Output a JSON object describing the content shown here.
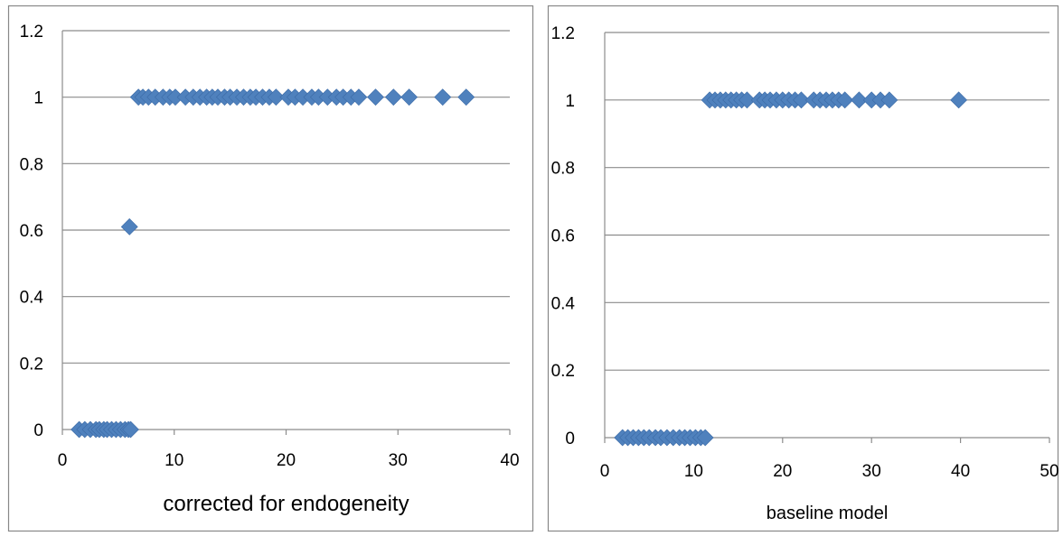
{
  "chart_data": [
    {
      "type": "scatter",
      "title": "",
      "xlabel": "corrected for endogeneity",
      "ylabel": "",
      "xlim": [
        0,
        40
      ],
      "ylim": [
        0,
        1.2
      ],
      "xticks": [
        "0",
        "10",
        "20",
        "30",
        "40"
      ],
      "yticks": [
        "0",
        "0.2",
        "0.4",
        "0.6",
        "0.8",
        "1",
        "1.2"
      ],
      "grid": "horizontal",
      "marker": "diamond",
      "color": "#4F81BD",
      "series": [
        {
          "x": [
            1.5,
            2.0,
            2.5,
            3.0,
            3.3,
            3.7,
            4.0,
            4.4,
            4.8,
            5.2,
            5.6,
            5.9,
            6.1,
            6.0,
            6.8,
            7.2,
            7.7,
            8.3,
            9.0,
            9.6,
            10.1,
            11.0,
            11.7,
            12.3,
            12.9,
            13.4,
            13.9,
            14.5,
            15.0,
            15.6,
            16.2,
            16.8,
            17.3,
            17.9,
            18.5,
            19.1,
            20.2,
            20.8,
            21.5,
            22.3,
            22.9,
            23.7,
            24.5,
            25.1,
            25.8,
            26.5,
            28.0,
            29.6,
            31.0,
            34.0,
            36.1
          ],
          "y": [
            0,
            0,
            0,
            0,
            0,
            0,
            0,
            0,
            0,
            0,
            0,
            0,
            0,
            0.61,
            1,
            1,
            1,
            1,
            1,
            1,
            1,
            1,
            1,
            1,
            1,
            1,
            1,
            1,
            1,
            1,
            1,
            1,
            1,
            1,
            1,
            1,
            1,
            1,
            1,
            1,
            1,
            1,
            1,
            1,
            1,
            1,
            1,
            1,
            1,
            1,
            1
          ]
        }
      ]
    },
    {
      "type": "scatter",
      "title": "",
      "xlabel": "baseline model",
      "ylabel": "",
      "xlim": [
        0,
        50
      ],
      "ylim": [
        0,
        1.2
      ],
      "xticks": [
        "0",
        "10",
        "20",
        "30",
        "40",
        "50"
      ],
      "yticks": [
        "0",
        "0.2",
        "0.4",
        "0.6",
        "0.8",
        "1",
        "1.2"
      ],
      "grid": "horizontal",
      "marker": "diamond",
      "color": "#4F81BD",
      "series": [
        {
          "x": [
            2.0,
            2.6,
            3.2,
            3.8,
            4.4,
            5.0,
            5.7,
            6.3,
            7.0,
            7.7,
            8.4,
            9.0,
            9.6,
            10.2,
            10.8,
            11.3,
            11.8,
            12.4,
            13.0,
            13.6,
            14.2,
            14.8,
            15.4,
            16.0,
            17.4,
            18.0,
            18.6,
            19.3,
            20.0,
            20.7,
            21.4,
            22.1,
            23.5,
            24.2,
            24.9,
            25.6,
            26.3,
            27.0,
            28.6,
            30.0,
            31.0,
            32.0,
            39.8
          ],
          "y": [
            0,
            0,
            0,
            0,
            0,
            0,
            0,
            0,
            0,
            0,
            0,
            0,
            0,
            0,
            0,
            0,
            1,
            1,
            1,
            1,
            1,
            1,
            1,
            1,
            1,
            1,
            1,
            1,
            1,
            1,
            1,
            1,
            1,
            1,
            1,
            1,
            1,
            1,
            1,
            1,
            1,
            1,
            1
          ]
        }
      ]
    }
  ]
}
